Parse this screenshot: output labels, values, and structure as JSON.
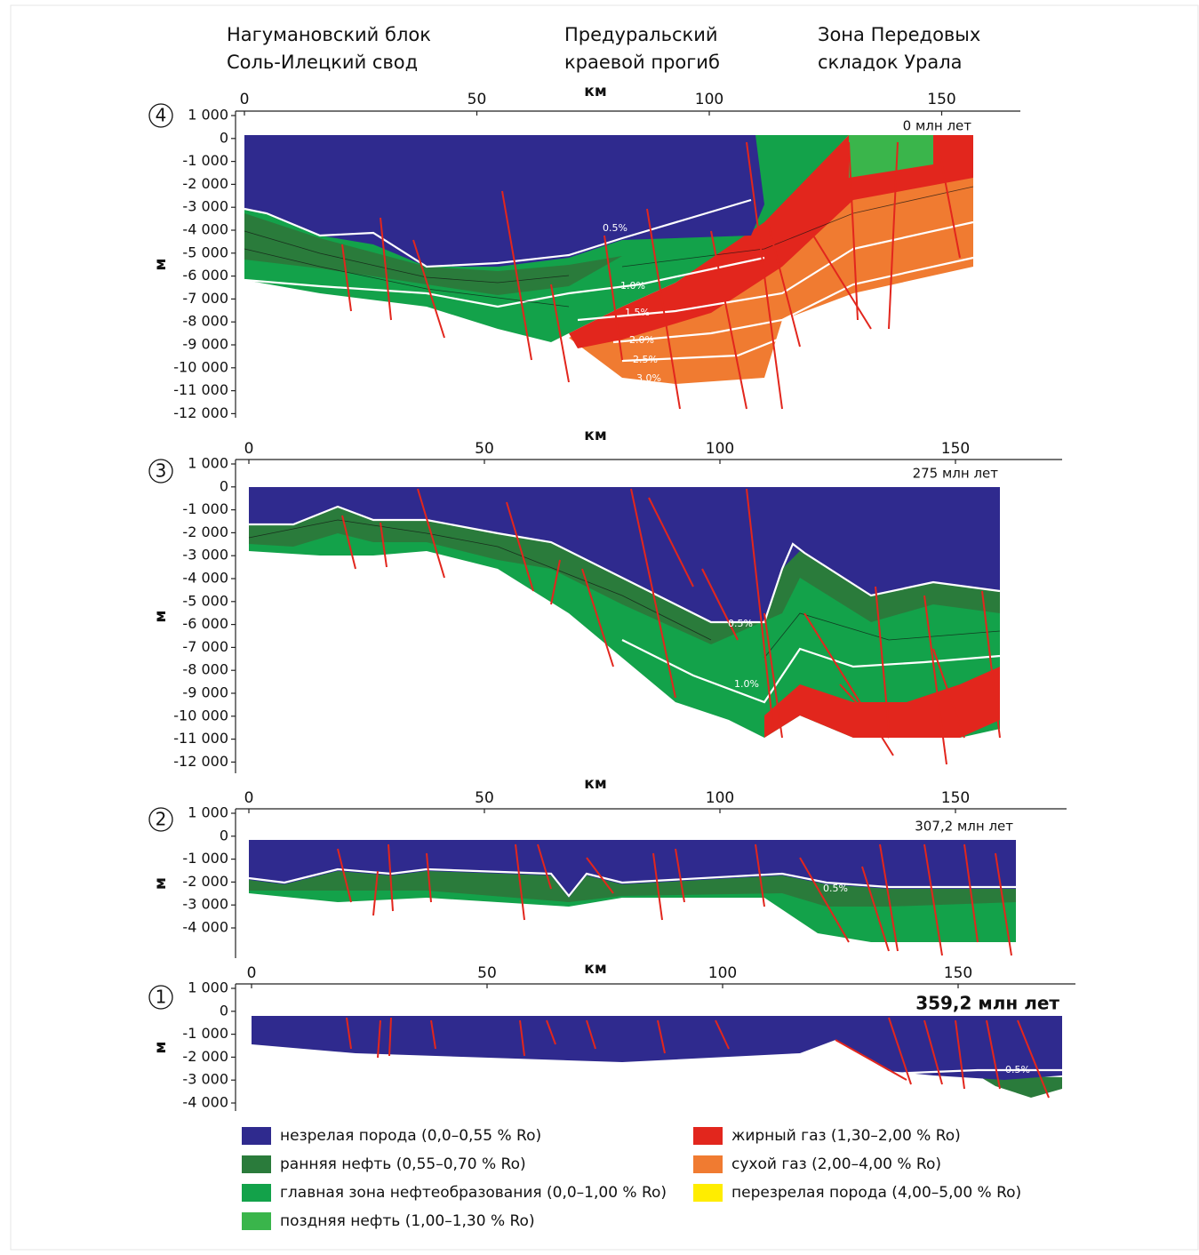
{
  "header": {
    "regions": [
      {
        "lines": [
          "Нагумановский блок",
          "Соль-Илецкий свод"
        ]
      },
      {
        "lines": [
          "Предуральский",
          "краевой прогиб"
        ]
      },
      {
        "lines": [
          "Зона Передовых",
          "складок Урала"
        ]
      }
    ]
  },
  "panels": [
    {
      "number": "4",
      "age": "0 млн лет",
      "x_axis_label": "км",
      "y_axis_label": "м",
      "x_ticks": [
        0,
        50,
        100,
        150
      ],
      "y_ticks": [
        "1 000",
        "0",
        "-1 000",
        "-2 000",
        "-3 000",
        "-4 000",
        "-5 000",
        "-6 000",
        "-7 000",
        "-8 000",
        "-9 000",
        "-10 000",
        "-11 000",
        "-12 000"
      ],
      "isolines": [
        "0.5%",
        "1.0%",
        "1.5%",
        "2.0%",
        "2.5%",
        "3.0%"
      ]
    },
    {
      "number": "3",
      "age": "275 млн лет",
      "x_axis_label": "км",
      "y_axis_label": "м",
      "x_ticks": [
        0,
        50,
        100,
        150
      ],
      "y_ticks": [
        "1 000",
        "0",
        "-1 000",
        "-2 000",
        "-3 000",
        "-4 000",
        "-5 000",
        "-6 000",
        "-7 000",
        "-8 000",
        "-9 000",
        "-10 000",
        "-11 000",
        "-12 000"
      ],
      "isolines": [
        "0.5%",
        "1.0%"
      ]
    },
    {
      "number": "2",
      "age": "307,2 млн лет",
      "x_axis_label": "км",
      "y_axis_label": "м",
      "x_ticks": [
        0,
        50,
        100,
        150
      ],
      "y_ticks": [
        "1 000",
        "0",
        "-1 000",
        "-2 000",
        "-3 000",
        "-4 000"
      ],
      "isolines": [
        "0.5%"
      ]
    },
    {
      "number": "1",
      "age": "359,2 млн лет",
      "x_axis_label": "км",
      "y_axis_label": "м",
      "x_ticks": [
        0,
        50,
        100,
        150
      ],
      "y_ticks": [
        "1 000",
        "0",
        "-1 000",
        "-2 000",
        "-3 000",
        "-4 000"
      ],
      "isolines": [
        "0.5%"
      ]
    }
  ],
  "legend": [
    {
      "label": "незрелая порода (0,0–0,55 % Ro)",
      "color": "#2f2a8e"
    },
    {
      "label": "ранняя нефть (0,55–0,70 % Ro)",
      "color": "#2a7b3b"
    },
    {
      "label": "главная зона нефтеобразования (0,0–1,00 % Ro)",
      "color": "#13a24a"
    },
    {
      "label": "поздняя нефть (1,00–1,30 % Ro)",
      "color": "#3ab54b"
    },
    {
      "label": "жирный газ (1,30–2,00 % Ro)",
      "color": "#e2261d"
    },
    {
      "label": "сухой газ (2,00–4,00 % Ro)",
      "color": "#f07b31"
    },
    {
      "label": "перезрелая порода (4,00–5,00 % Ro)",
      "color": "#ffed00"
    }
  ]
}
